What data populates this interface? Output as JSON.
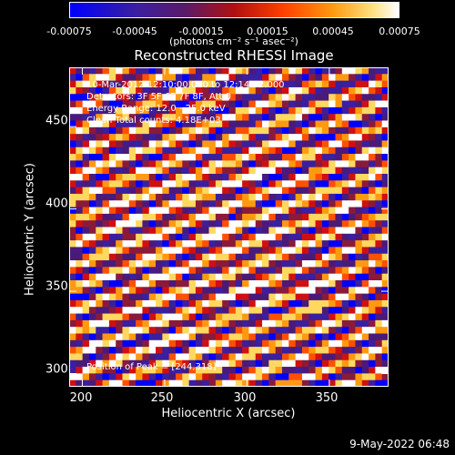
{
  "colorbar": {
    "ticks": [
      "-0.00075",
      "-0.00045",
      "-0.00015",
      "0.00015",
      "0.00045",
      "0.00075"
    ],
    "unit_label": "(photons cm⁻² s⁻¹ asec⁻²)",
    "range": [
      -0.00075,
      0.00075
    ]
  },
  "info": {
    "line1": "10-Mar-2012 12:10:00.000 to 12:14:32.000",
    "line2": "Detectors: 3F 5F 6F 7F 8F, Att 0",
    "line3": "Energy Range: 12.0 - 25.0 keV",
    "line4": "Clean     Total counts: 4.18E+03",
    "peak": "Position of Peak = [244,318]"
  },
  "timestamp": "9-May-2022 06:48",
  "chart_data": {
    "type": "heatmap",
    "title": "Reconstructed RHESSI Image",
    "xlabel": "Heliocentric X (arcsec)",
    "ylabel": "Heliocentric Y (arcsec)",
    "xlim": [
      192,
      386
    ],
    "ylim": [
      292,
      486
    ],
    "xticks": [
      "200",
      "250",
      "300",
      "350"
    ],
    "yticks": [
      "300",
      "350",
      "400",
      "450"
    ],
    "colormap": [
      "#0000ff",
      "#3a1fa0",
      "#4a1a7a",
      "#8a1a3a",
      "#d01010",
      "#ff5000",
      "#ff9a10",
      "#ffd860",
      "#ffffff"
    ],
    "grid_size": 48,
    "stripes": {
      "slope": 0.38,
      "spacing_arcsec": 13.5
    },
    "peak": [
      244,
      318
    ]
  }
}
